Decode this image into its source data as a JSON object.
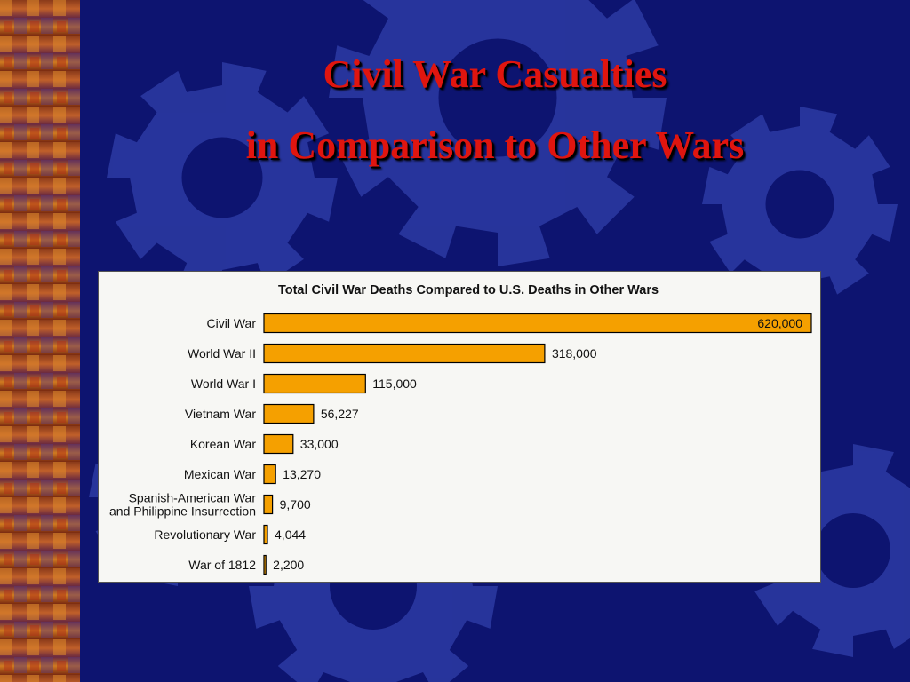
{
  "slide": {
    "title_line1": "Civil War Casualties",
    "title_line2": "in Comparison to Other Wars"
  },
  "colors": {
    "background": "#0d1470",
    "gear": "#3e4fc0",
    "title": "#e0150f",
    "bar": "#f5a000",
    "bar_outline": "#000000",
    "panel": "#f7f7f4"
  },
  "chart_data": {
    "type": "bar",
    "orientation": "horizontal",
    "title": "Total Civil War Deaths Compared to U.S. Deaths in Other Wars",
    "categories": [
      [
        "Civil War"
      ],
      [
        "World War II"
      ],
      [
        "World War I"
      ],
      [
        "Vietnam War"
      ],
      [
        "Korean War"
      ],
      [
        "Mexican War"
      ],
      [
        "Spanish-American War",
        "and Philippine Insurrection"
      ],
      [
        "Revolutionary War"
      ],
      [
        "War of 1812"
      ]
    ],
    "values": [
      620000,
      318000,
      115000,
      56227,
      33000,
      13270,
      9700,
      4044,
      2200
    ],
    "value_labels": [
      "620,000",
      "318,000",
      "115,000",
      "56,227",
      "33,000",
      "13,270",
      "9,700",
      "4,044",
      "2,200"
    ],
    "xlim": [
      0,
      620000
    ],
    "xlabel": "",
    "ylabel": "",
    "grid": false,
    "legend": "none"
  }
}
